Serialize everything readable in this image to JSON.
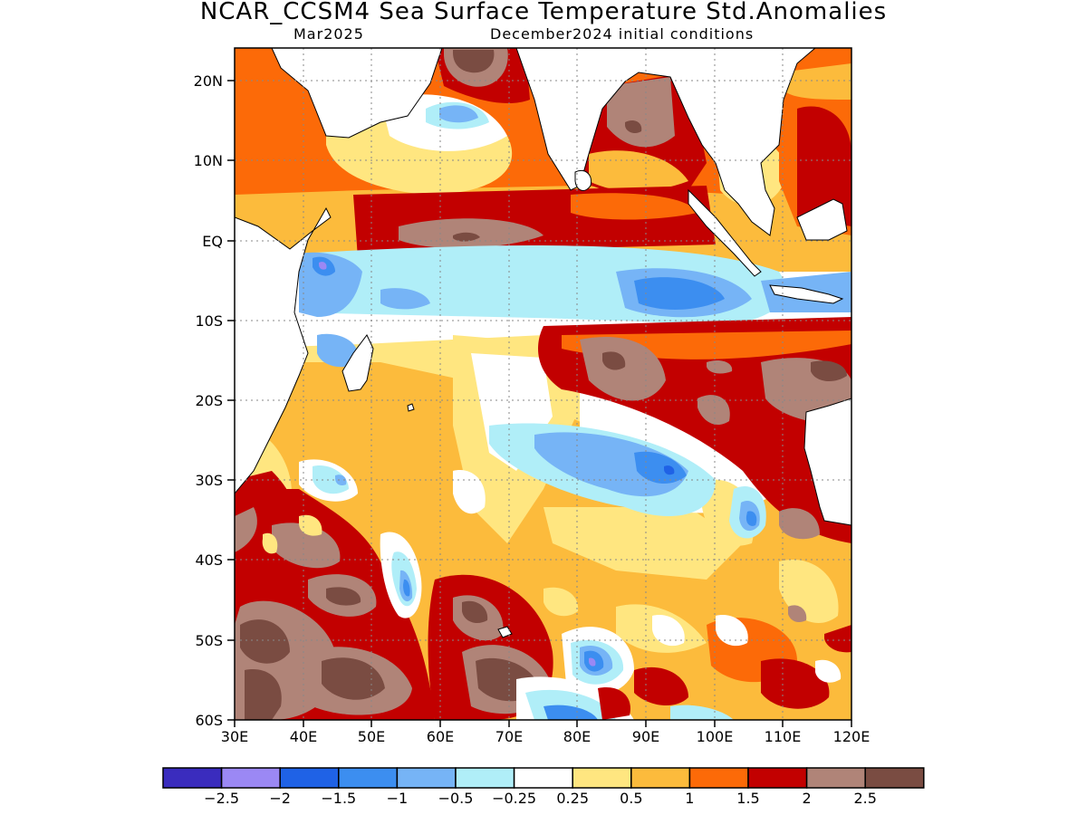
{
  "title": "NCAR_CCSM4 Sea Surface Temperature Std.Anomalies",
  "valid_month": "Mar2025",
  "init_conditions": "December2024 initial conditions",
  "map": {
    "lon_range": [
      30,
      120
    ],
    "lat_range": [
      -60,
      24
    ],
    "lat_ticks": [
      {
        "lat": 20,
        "label": "20N"
      },
      {
        "lat": 10,
        "label": "10N"
      },
      {
        "lat": 0,
        "label": "EQ"
      },
      {
        "lat": -10,
        "label": "10S"
      },
      {
        "lat": -20,
        "label": "20S"
      },
      {
        "lat": -30,
        "label": "30S"
      },
      {
        "lat": -40,
        "label": "40S"
      },
      {
        "lat": -50,
        "label": "50S"
      },
      {
        "lat": -60,
        "label": "60S"
      }
    ],
    "lon_ticks": [
      {
        "lon": 30,
        "label": "30E"
      },
      {
        "lon": 40,
        "label": "40E"
      },
      {
        "lon": 50,
        "label": "50E"
      },
      {
        "lon": 60,
        "label": "60E"
      },
      {
        "lon": 70,
        "label": "70E"
      },
      {
        "lon": 80,
        "label": "80E"
      },
      {
        "lon": 90,
        "label": "90E"
      },
      {
        "lon": 100,
        "label": "100E"
      },
      {
        "lon": 110,
        "label": "110E"
      },
      {
        "lon": 120,
        "label": "120E"
      }
    ],
    "gridlines": true
  },
  "colorbar": {
    "colors": [
      "#3a2cbe",
      "#9b88f4",
      "#1f62e6",
      "#3c8ef0",
      "#76b4f6",
      "#b0eef8",
      "#ffffff",
      "#ffe680",
      "#fcbb3c",
      "#fc6a08",
      "#c20000",
      "#b08478",
      "#7a4c42"
    ],
    "labels": [
      "-2.5",
      "-2",
      "-1.5",
      "-1",
      "-0.5",
      "-0.25",
      "0.25",
      "0.5",
      "1",
      "1.5",
      "2",
      "2.5"
    ]
  }
}
